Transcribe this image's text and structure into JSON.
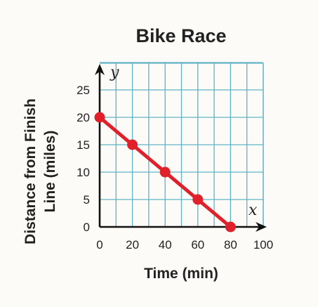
{
  "chart_data": {
    "type": "line",
    "title": "Bike Race",
    "xlabel": "Time (min)",
    "ylabel_lines": [
      "Distance from Finish",
      "Line (miles)"
    ],
    "x_axis_letter": "x",
    "y_axis_letter": "y",
    "xlim": [
      0,
      100
    ],
    "ylim": [
      0,
      25
    ],
    "x_ticks": [
      0,
      20,
      40,
      60,
      80,
      100
    ],
    "y_ticks": [
      0,
      5,
      10,
      15,
      20,
      25
    ],
    "grid": true,
    "series": [
      {
        "x": [
          0,
          20,
          40,
          60,
          80
        ],
        "y": [
          20,
          15,
          10,
          5,
          0
        ]
      }
    ]
  },
  "colors": {
    "grid": "#5fb3c6",
    "line": "#e0202a",
    "axis": "#111111",
    "background": "#fcfbf7"
  }
}
